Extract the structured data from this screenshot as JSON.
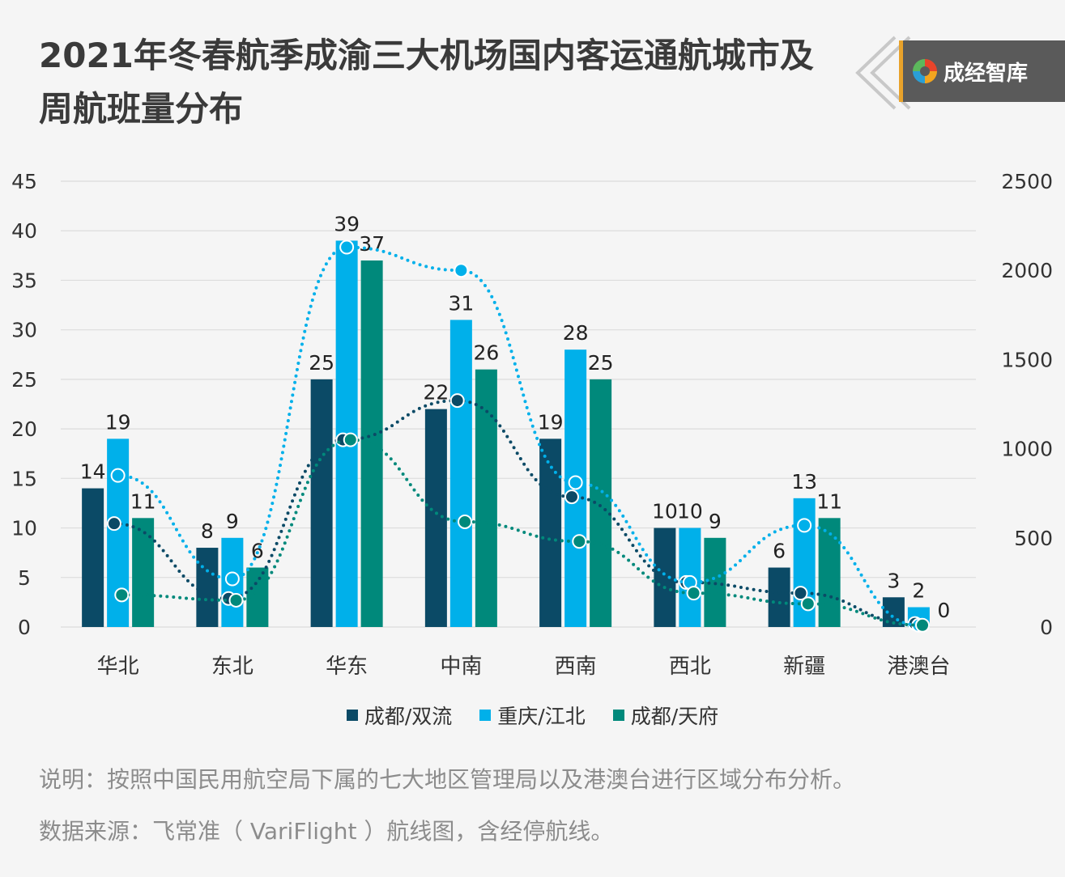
{
  "title": "2021年冬春航季成渝三大机场国内客运通航城市及周航班量分布",
  "brand": {
    "name": "成经智库",
    "logo_icon": "chengjing-logo-icon"
  },
  "notes": {
    "line1": "说明：按照中国民用航空局下属的七大地区管理局以及港澳台进行区域分布分析。",
    "line2": "数据来源：飞常准（ VariFlight ）航线图，含经停航线。"
  },
  "colors": {
    "chengdu_shuangliu": "#0b4a66",
    "chongqing_jiangbei": "#00b0ea",
    "chengdu_tianfu": "#00897b",
    "grid": "#dcdcdc"
  },
  "chart_data": {
    "type": "bar",
    "categories": [
      "华北",
      "东北",
      "华东",
      "中南",
      "西南",
      "西北",
      "新疆",
      "港澳台"
    ],
    "series": [
      {
        "name": "成都/双流",
        "axis": "left",
        "values": [
          14,
          8,
          25,
          22,
          19,
          10,
          6,
          3
        ],
        "color": "#0b4a66"
      },
      {
        "name": "重庆/江北",
        "axis": "left",
        "values": [
          19,
          9,
          39,
          31,
          28,
          10,
          13,
          2
        ],
        "color": "#00b0ea"
      },
      {
        "name": "成都/天府",
        "axis": "left",
        "values": [
          11,
          6,
          37,
          26,
          25,
          9,
          11,
          0
        ],
        "color": "#00897b"
      }
    ],
    "line_series": [
      {
        "name": "成都/双流",
        "axis": "right",
        "type": "line",
        "style": "dotted",
        "values": [
          580,
          160,
          1050,
          1270,
          730,
          250,
          190,
          20
        ],
        "color": "#0b4a66"
      },
      {
        "name": "重庆/江北",
        "axis": "right",
        "type": "line",
        "style": "dotted",
        "values": [
          850,
          270,
          2130,
          2000,
          810,
          250,
          570,
          10
        ],
        "color": "#00b0ea"
      },
      {
        "name": "成都/天府",
        "axis": "right",
        "type": "line",
        "style": "dotted",
        "values": [
          180,
          150,
          1050,
          590,
          480,
          190,
          130,
          10
        ],
        "color": "#00897b"
      }
    ],
    "y_left": {
      "min": 0,
      "max": 45,
      "ticks": [
        "0",
        "5",
        "10",
        "15",
        "20",
        "25",
        "30",
        "35",
        "40",
        "45"
      ]
    },
    "y_right": {
      "min": 0,
      "max": 2500,
      "ticks": [
        "0",
        "500",
        "1000",
        "1500",
        "2000",
        "2500"
      ]
    },
    "grid": true,
    "legend_position": "bottom"
  }
}
